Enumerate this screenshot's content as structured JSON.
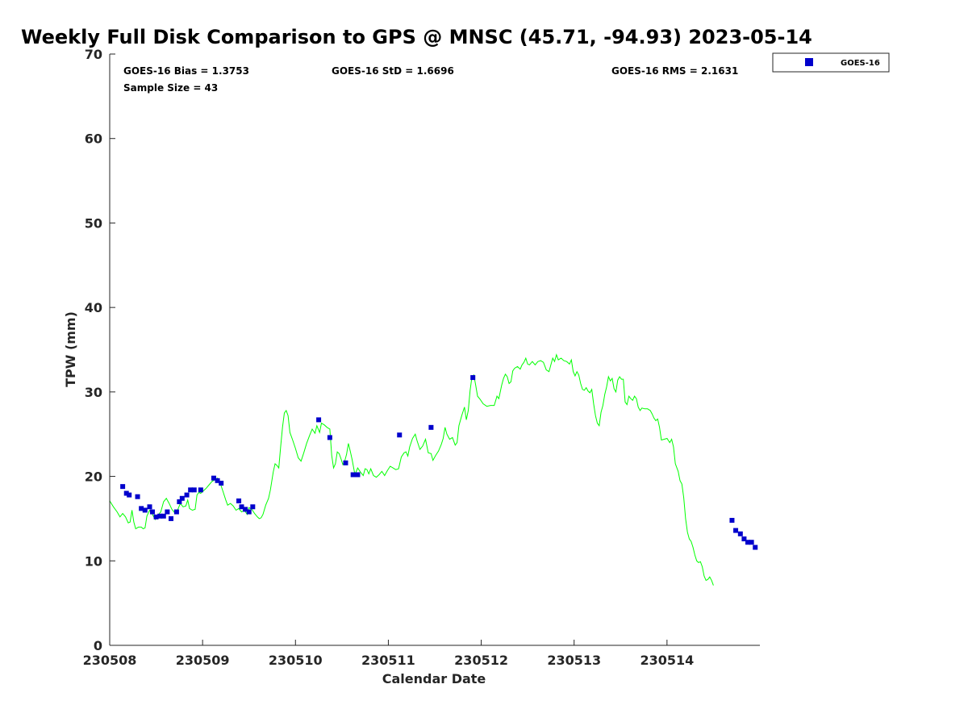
{
  "chart_data": {
    "type": "scatter",
    "title": "Weekly Full Disk Comparison to GPS @ MNSC (45.71, -94.93) 2023-05-14",
    "xlabel": "Calendar Date",
    "ylabel": "TPW (mm)",
    "xlim": [
      0,
      7
    ],
    "ylim": [
      0,
      70
    ],
    "x_ticks": [
      0,
      1,
      2,
      3,
      4,
      5,
      6
    ],
    "x_tick_labels": [
      "230508",
      "230509",
      "230510",
      "230511",
      "230512",
      "230513",
      "230514"
    ],
    "y_ticks": [
      0,
      10,
      20,
      30,
      40,
      50,
      60,
      70
    ],
    "grid": false,
    "legend_position": "top-right",
    "stats": {
      "bias": "GOES-16 Bias = 1.3753",
      "std": "GOES-16 StD = 1.6696",
      "rms": "GOES-16 RMS = 2.1631",
      "sample_size": "Sample Size = 43"
    },
    "series": [
      {
        "name": "GOES-16",
        "kind": "scatter",
        "color": "#0000cc",
        "marker": "square",
        "points": [
          [
            0.14,
            18.8
          ],
          [
            0.18,
            18.0
          ],
          [
            0.21,
            17.8
          ],
          [
            0.3,
            17.6
          ],
          [
            0.34,
            16.2
          ],
          [
            0.38,
            16.0
          ],
          [
            0.43,
            16.4
          ],
          [
            0.46,
            15.8
          ],
          [
            0.5,
            15.2
          ],
          [
            0.54,
            15.3
          ],
          [
            0.58,
            15.3
          ],
          [
            0.62,
            15.8
          ],
          [
            0.66,
            15.0
          ],
          [
            0.72,
            15.8
          ],
          [
            0.75,
            17.0
          ],
          [
            0.78,
            17.4
          ],
          [
            0.83,
            17.8
          ],
          [
            0.87,
            18.4
          ],
          [
            0.91,
            18.4
          ],
          [
            0.98,
            18.4
          ],
          [
            1.12,
            19.8
          ],
          [
            1.16,
            19.5
          ],
          [
            1.2,
            19.2
          ],
          [
            1.39,
            17.1
          ],
          [
            1.42,
            16.4
          ],
          [
            1.46,
            16.1
          ],
          [
            1.5,
            15.8
          ],
          [
            1.54,
            16.4
          ],
          [
            2.25,
            26.7
          ],
          [
            2.37,
            24.6
          ],
          [
            2.54,
            21.6
          ],
          [
            2.62,
            20.2
          ],
          [
            2.67,
            20.2
          ],
          [
            3.12,
            24.9
          ],
          [
            3.46,
            25.8
          ],
          [
            3.91,
            31.7
          ],
          [
            6.7,
            14.8
          ],
          [
            6.74,
            13.6
          ],
          [
            6.79,
            13.2
          ],
          [
            6.83,
            12.6
          ],
          [
            6.87,
            12.2
          ],
          [
            6.91,
            12.2
          ],
          [
            6.95,
            11.6
          ]
        ]
      },
      {
        "name": "GPS",
        "kind": "line",
        "color": "#00ff00",
        "points": [
          [
            0.0,
            17.1
          ],
          [
            0.04,
            16.4
          ],
          [
            0.08,
            15.8
          ],
          [
            0.11,
            15.2
          ],
          [
            0.14,
            15.6
          ],
          [
            0.17,
            15.2
          ],
          [
            0.2,
            14.5
          ],
          [
            0.22,
            14.6
          ],
          [
            0.24,
            16.0
          ],
          [
            0.26,
            14.6
          ],
          [
            0.28,
            13.8
          ],
          [
            0.31,
            14.0
          ],
          [
            0.34,
            14.0
          ],
          [
            0.36,
            13.8
          ],
          [
            0.38,
            13.9
          ],
          [
            0.4,
            15.3
          ],
          [
            0.43,
            16.0
          ],
          [
            0.46,
            15.5
          ],
          [
            0.49,
            14.9
          ],
          [
            0.52,
            15.4
          ],
          [
            0.55,
            15.8
          ],
          [
            0.58,
            17.0
          ],
          [
            0.61,
            17.4
          ],
          [
            0.64,
            16.8
          ],
          [
            0.67,
            16.1
          ],
          [
            0.7,
            15.7
          ],
          [
            0.73,
            16.0
          ],
          [
            0.76,
            16.8
          ],
          [
            0.79,
            16.4
          ],
          [
            0.82,
            16.5
          ],
          [
            0.84,
            17.2
          ],
          [
            0.86,
            16.2
          ],
          [
            0.89,
            16.0
          ],
          [
            0.92,
            16.1
          ],
          [
            0.94,
            17.8
          ],
          [
            0.96,
            18.1
          ],
          [
            0.98,
            18.0
          ],
          [
            1.01,
            18.3
          ],
          [
            1.04,
            18.6
          ],
          [
            1.07,
            19.0
          ],
          [
            1.1,
            19.4
          ],
          [
            1.13,
            19.6
          ],
          [
            1.16,
            19.8
          ],
          [
            1.19,
            19.2
          ],
          [
            1.22,
            18.2
          ],
          [
            1.25,
            17.2
          ],
          [
            1.27,
            16.6
          ],
          [
            1.3,
            16.8
          ],
          [
            1.33,
            16.5
          ],
          [
            1.36,
            16.0
          ],
          [
            1.39,
            16.2
          ],
          [
            1.42,
            15.8
          ],
          [
            1.45,
            16.0
          ],
          [
            1.48,
            15.5
          ],
          [
            1.5,
            16.3
          ],
          [
            1.53,
            16.1
          ],
          [
            1.56,
            15.6
          ],
          [
            1.59,
            15.2
          ],
          [
            1.61,
            15.0
          ],
          [
            1.63,
            15.1
          ],
          [
            1.65,
            15.5
          ],
          [
            1.68,
            16.6
          ],
          [
            1.71,
            17.4
          ],
          [
            1.73,
            18.4
          ],
          [
            1.76,
            20.5
          ],
          [
            1.78,
            21.5
          ],
          [
            1.8,
            21.3
          ],
          [
            1.82,
            21.0
          ],
          [
            1.84,
            23.5
          ],
          [
            1.86,
            25.8
          ],
          [
            1.88,
            27.5
          ],
          [
            1.9,
            27.8
          ],
          [
            1.92,
            27.2
          ],
          [
            1.94,
            25.2
          ],
          [
            1.97,
            24.3
          ],
          [
            2.0,
            23.3
          ],
          [
            2.03,
            22.2
          ],
          [
            2.06,
            21.8
          ],
          [
            2.09,
            22.8
          ],
          [
            2.12,
            23.9
          ],
          [
            2.15,
            24.8
          ],
          [
            2.18,
            25.6
          ],
          [
            2.21,
            25.1
          ],
          [
            2.23,
            26.0
          ],
          [
            2.26,
            25.2
          ],
          [
            2.28,
            26.3
          ],
          [
            2.31,
            26.1
          ],
          [
            2.34,
            25.8
          ],
          [
            2.37,
            25.6
          ],
          [
            2.39,
            22.5
          ],
          [
            2.41,
            21.0
          ],
          [
            2.43,
            21.5
          ],
          [
            2.45,
            22.9
          ],
          [
            2.47,
            22.7
          ],
          [
            2.49,
            22.1
          ],
          [
            2.51,
            21.4
          ],
          [
            2.53,
            21.8
          ],
          [
            2.55,
            22.6
          ],
          [
            2.57,
            23.9
          ],
          [
            2.59,
            23.0
          ],
          [
            2.61,
            22.0
          ],
          [
            2.64,
            20.2
          ],
          [
            2.67,
            21.0
          ],
          [
            2.7,
            20.5
          ],
          [
            2.73,
            20.1
          ],
          [
            2.75,
            20.9
          ],
          [
            2.77,
            20.8
          ],
          [
            2.79,
            20.3
          ],
          [
            2.81,
            20.9
          ],
          [
            2.84,
            20.1
          ],
          [
            2.87,
            19.9
          ],
          [
            2.9,
            20.2
          ],
          [
            2.93,
            20.6
          ],
          [
            2.96,
            20.1
          ],
          [
            2.99,
            20.7
          ],
          [
            3.02,
            21.2
          ],
          [
            3.05,
            21.0
          ],
          [
            3.08,
            20.8
          ],
          [
            3.11,
            20.9
          ],
          [
            3.14,
            22.3
          ],
          [
            3.17,
            22.8
          ],
          [
            3.19,
            22.9
          ],
          [
            3.21,
            22.4
          ],
          [
            3.23,
            23.5
          ],
          [
            3.26,
            24.5
          ],
          [
            3.29,
            25.0
          ],
          [
            3.31,
            24.2
          ],
          [
            3.34,
            23.2
          ],
          [
            3.37,
            23.6
          ],
          [
            3.4,
            24.4
          ],
          [
            3.43,
            22.8
          ],
          [
            3.46,
            22.7
          ],
          [
            3.48,
            21.9
          ],
          [
            3.51,
            22.5
          ],
          [
            3.54,
            23.0
          ],
          [
            3.57,
            23.8
          ],
          [
            3.59,
            24.5
          ],
          [
            3.61,
            25.8
          ],
          [
            3.63,
            25.0
          ],
          [
            3.66,
            24.4
          ],
          [
            3.69,
            24.6
          ],
          [
            3.72,
            23.7
          ],
          [
            3.74,
            24.0
          ],
          [
            3.76,
            26.0
          ],
          [
            3.79,
            27.2
          ],
          [
            3.82,
            28.2
          ],
          [
            3.84,
            26.7
          ],
          [
            3.86,
            27.8
          ],
          [
            3.88,
            30.2
          ],
          [
            3.9,
            31.8
          ],
          [
            3.92,
            32.0
          ],
          [
            3.94,
            30.8
          ],
          [
            3.96,
            29.5
          ],
          [
            3.99,
            29.1
          ],
          [
            4.02,
            28.6
          ],
          [
            4.06,
            28.3
          ],
          [
            4.1,
            28.4
          ],
          [
            4.14,
            28.4
          ],
          [
            4.17,
            29.5
          ],
          [
            4.19,
            29.2
          ],
          [
            4.22,
            30.8
          ],
          [
            4.24,
            31.6
          ],
          [
            4.26,
            32.1
          ],
          [
            4.28,
            31.8
          ],
          [
            4.3,
            31.0
          ],
          [
            4.32,
            31.2
          ],
          [
            4.34,
            32.5
          ],
          [
            4.36,
            32.8
          ],
          [
            4.39,
            33.0
          ],
          [
            4.42,
            32.7
          ],
          [
            4.44,
            33.2
          ],
          [
            4.46,
            33.5
          ],
          [
            4.48,
            34.0
          ],
          [
            4.5,
            33.3
          ],
          [
            4.52,
            33.2
          ],
          [
            4.55,
            33.6
          ],
          [
            4.58,
            33.2
          ],
          [
            4.61,
            33.6
          ],
          [
            4.64,
            33.7
          ],
          [
            4.67,
            33.5
          ],
          [
            4.7,
            32.6
          ],
          [
            4.73,
            32.4
          ],
          [
            4.75,
            33.2
          ],
          [
            4.77,
            34.0
          ],
          [
            4.79,
            33.6
          ],
          [
            4.81,
            34.4
          ],
          [
            4.83,
            33.8
          ],
          [
            4.86,
            34.0
          ],
          [
            4.89,
            33.7
          ],
          [
            4.92,
            33.6
          ],
          [
            4.95,
            33.3
          ],
          [
            4.97,
            33.8
          ],
          [
            4.99,
            32.4
          ],
          [
            5.01,
            31.9
          ],
          [
            5.03,
            32.4
          ],
          [
            5.05,
            32.0
          ],
          [
            5.07,
            31.0
          ],
          [
            5.09,
            30.3
          ],
          [
            5.11,
            30.2
          ],
          [
            5.13,
            30.5
          ],
          [
            5.15,
            30.1
          ],
          [
            5.17,
            29.9
          ],
          [
            5.19,
            30.3
          ],
          [
            5.21,
            28.6
          ],
          [
            5.23,
            27.2
          ],
          [
            5.25,
            26.3
          ],
          [
            5.27,
            26.0
          ],
          [
            5.29,
            27.6
          ],
          [
            5.31,
            28.4
          ],
          [
            5.33,
            29.7
          ],
          [
            5.35,
            30.6
          ],
          [
            5.37,
            31.8
          ],
          [
            5.39,
            31.3
          ],
          [
            5.41,
            31.6
          ],
          [
            5.43,
            30.4
          ],
          [
            5.45,
            30.0
          ],
          [
            5.47,
            31.4
          ],
          [
            5.49,
            31.8
          ],
          [
            5.51,
            31.5
          ],
          [
            5.53,
            31.5
          ],
          [
            5.55,
            28.8
          ],
          [
            5.57,
            28.5
          ],
          [
            5.59,
            29.5
          ],
          [
            5.61,
            29.2
          ],
          [
            5.63,
            29.0
          ],
          [
            5.65,
            29.5
          ],
          [
            5.67,
            29.2
          ],
          [
            5.69,
            28.2
          ],
          [
            5.71,
            27.8
          ],
          [
            5.73,
            28.1
          ],
          [
            5.76,
            28.0
          ],
          [
            5.79,
            28.0
          ],
          [
            5.82,
            27.8
          ],
          [
            5.84,
            27.4
          ],
          [
            5.86,
            26.9
          ],
          [
            5.88,
            26.6
          ],
          [
            5.9,
            26.8
          ],
          [
            5.92,
            25.8
          ],
          [
            5.94,
            24.3
          ],
          [
            5.97,
            24.4
          ],
          [
            6.0,
            24.5
          ],
          [
            6.03,
            24.0
          ],
          [
            6.05,
            24.4
          ],
          [
            6.07,
            23.5
          ],
          [
            6.09,
            21.5
          ],
          [
            6.12,
            20.6
          ],
          [
            6.14,
            19.5
          ],
          [
            6.16,
            19.1
          ],
          [
            6.18,
            17.5
          ],
          [
            6.2,
            15.0
          ],
          [
            6.22,
            13.4
          ],
          [
            6.24,
            12.6
          ],
          [
            6.26,
            12.3
          ],
          [
            6.28,
            11.6
          ],
          [
            6.3,
            10.7
          ],
          [
            6.32,
            10.0
          ],
          [
            6.34,
            9.8
          ],
          [
            6.36,
            9.9
          ],
          [
            6.38,
            9.3
          ],
          [
            6.4,
            8.2
          ],
          [
            6.42,
            7.7
          ],
          [
            6.44,
            7.8
          ],
          [
            6.46,
            8.1
          ],
          [
            6.48,
            7.7
          ],
          [
            6.5,
            7.1
          ]
        ]
      }
    ]
  }
}
